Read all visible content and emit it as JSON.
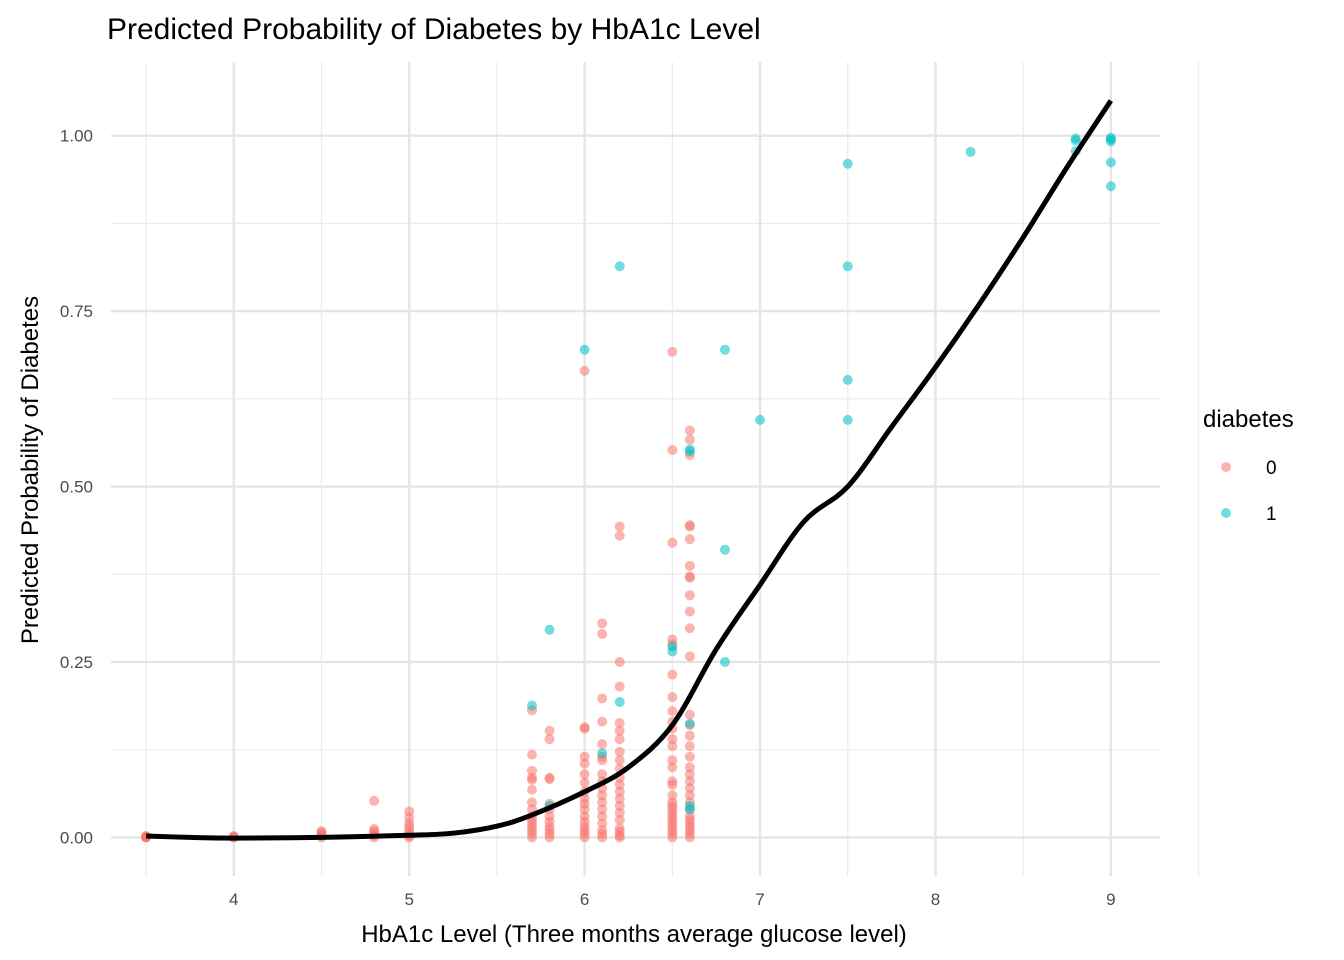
{
  "chart_data": {
    "type": "scatter",
    "title": "Predicted Probability of Diabetes by HbA1c Level",
    "xlabel": "HbA1c Level (Three months average glucose level)",
    "ylabel": "Predicted Probability of Diabetes",
    "xlim": [
      3.3,
      9.28
    ],
    "ylim": [
      -0.055,
      1.105
    ],
    "x_ticks": [
      4,
      5,
      6,
      7,
      8,
      9
    ],
    "x_tick_labels": [
      "4",
      "5",
      "6",
      "7",
      "8",
      "9"
    ],
    "y_ticks": [
      0,
      0.25,
      0.5,
      0.75,
      1
    ],
    "y_tick_labels": [
      "0.00",
      "0.25",
      "0.50",
      "0.75",
      "1.00"
    ],
    "grid": true,
    "legend": {
      "title": "diabetes",
      "placement": "right",
      "entries": [
        {
          "label": "0",
          "color": "#F8766D"
        },
        {
          "label": "1",
          "color": "#00BFC4"
        }
      ]
    },
    "series": [
      {
        "name": "0",
        "color": "#F8766D",
        "points": [
          [
            3.5,
            0.0
          ],
          [
            3.5,
            0.001
          ],
          [
            3.5,
            0.002
          ],
          [
            3.5,
            0.0
          ],
          [
            3.5,
            0.001
          ],
          [
            4.0,
            0.0
          ],
          [
            4.0,
            0.001
          ],
          [
            4.0,
            0.002
          ],
          [
            4.0,
            0.0
          ],
          [
            4.5,
            0.0
          ],
          [
            4.5,
            0.002
          ],
          [
            4.5,
            0.004
          ],
          [
            4.5,
            0.007
          ],
          [
            4.5,
            0.009
          ],
          [
            4.8,
            0.0
          ],
          [
            4.8,
            0.003
          ],
          [
            4.8,
            0.006
          ],
          [
            4.8,
            0.009
          ],
          [
            4.8,
            0.012
          ],
          [
            4.8,
            0.052
          ],
          [
            5.0,
            0.0
          ],
          [
            5.0,
            0.002
          ],
          [
            5.0,
            0.005
          ],
          [
            5.0,
            0.01
          ],
          [
            5.0,
            0.015
          ],
          [
            5.0,
            0.02
          ],
          [
            5.0,
            0.028
          ],
          [
            5.0,
            0.037
          ],
          [
            5.7,
            0.0
          ],
          [
            5.7,
            0.005
          ],
          [
            5.7,
            0.01
          ],
          [
            5.7,
            0.015
          ],
          [
            5.7,
            0.02
          ],
          [
            5.7,
            0.025
          ],
          [
            5.7,
            0.03
          ],
          [
            5.7,
            0.04
          ],
          [
            5.7,
            0.05
          ],
          [
            5.7,
            0.068
          ],
          [
            5.7,
            0.082
          ],
          [
            5.7,
            0.085
          ],
          [
            5.7,
            0.095
          ],
          [
            5.7,
            0.118
          ],
          [
            5.7,
            0.181
          ],
          [
            5.8,
            0.0
          ],
          [
            5.8,
            0.005
          ],
          [
            5.8,
            0.01
          ],
          [
            5.8,
            0.015
          ],
          [
            5.8,
            0.022
          ],
          [
            5.8,
            0.03
          ],
          [
            5.8,
            0.04
          ],
          [
            5.8,
            0.048
          ],
          [
            5.8,
            0.083
          ],
          [
            5.8,
            0.085
          ],
          [
            5.8,
            0.14
          ],
          [
            5.8,
            0.152
          ],
          [
            6.0,
            0.0
          ],
          [
            6.0,
            0.005
          ],
          [
            6.0,
            0.01
          ],
          [
            6.0,
            0.015
          ],
          [
            6.0,
            0.022
          ],
          [
            6.0,
            0.03
          ],
          [
            6.0,
            0.04
          ],
          [
            6.0,
            0.048
          ],
          [
            6.0,
            0.055
          ],
          [
            6.0,
            0.065
          ],
          [
            6.0,
            0.078
          ],
          [
            6.0,
            0.09
          ],
          [
            6.0,
            0.105
          ],
          [
            6.0,
            0.115
          ],
          [
            6.0,
            0.155
          ],
          [
            6.0,
            0.157
          ],
          [
            6.0,
            0.665
          ],
          [
            6.1,
            0.0
          ],
          [
            6.1,
            0.005
          ],
          [
            6.1,
            0.01
          ],
          [
            6.1,
            0.02
          ],
          [
            6.1,
            0.03
          ],
          [
            6.1,
            0.04
          ],
          [
            6.1,
            0.05
          ],
          [
            6.1,
            0.06
          ],
          [
            6.1,
            0.07
          ],
          [
            6.1,
            0.08
          ],
          [
            6.1,
            0.09
          ],
          [
            6.1,
            0.11
          ],
          [
            6.1,
            0.115
          ],
          [
            6.1,
            0.133
          ],
          [
            6.1,
            0.165
          ],
          [
            6.1,
            0.198
          ],
          [
            6.1,
            0.29
          ],
          [
            6.1,
            0.305
          ],
          [
            6.2,
            0.0
          ],
          [
            6.2,
            0.003
          ],
          [
            6.2,
            0.008
          ],
          [
            6.2,
            0.013
          ],
          [
            6.2,
            0.025
          ],
          [
            6.2,
            0.035
          ],
          [
            6.2,
            0.045
          ],
          [
            6.2,
            0.055
          ],
          [
            6.2,
            0.065
          ],
          [
            6.2,
            0.075
          ],
          [
            6.2,
            0.085
          ],
          [
            6.2,
            0.098
          ],
          [
            6.2,
            0.11
          ],
          [
            6.2,
            0.122
          ],
          [
            6.2,
            0.14
          ],
          [
            6.2,
            0.152
          ],
          [
            6.2,
            0.163
          ],
          [
            6.2,
            0.215
          ],
          [
            6.2,
            0.25
          ],
          [
            6.2,
            0.43
          ],
          [
            6.2,
            0.443
          ],
          [
            6.5,
            0.0
          ],
          [
            6.5,
            0.005
          ],
          [
            6.5,
            0.01
          ],
          [
            6.5,
            0.015
          ],
          [
            6.5,
            0.02
          ],
          [
            6.5,
            0.025
          ],
          [
            6.5,
            0.03
          ],
          [
            6.5,
            0.035
          ],
          [
            6.5,
            0.04
          ],
          [
            6.5,
            0.045
          ],
          [
            6.5,
            0.05
          ],
          [
            6.5,
            0.06
          ],
          [
            6.5,
            0.075
          ],
          [
            6.5,
            0.08
          ],
          [
            6.5,
            0.1
          ],
          [
            6.5,
            0.11
          ],
          [
            6.5,
            0.13
          ],
          [
            6.5,
            0.14
          ],
          [
            6.5,
            0.155
          ],
          [
            6.5,
            0.165
          ],
          [
            6.5,
            0.18
          ],
          [
            6.5,
            0.2
          ],
          [
            6.5,
            0.232
          ],
          [
            6.5,
            0.275
          ],
          [
            6.5,
            0.282
          ],
          [
            6.5,
            0.42
          ],
          [
            6.5,
            0.552
          ],
          [
            6.5,
            0.692
          ],
          [
            6.6,
            0.0
          ],
          [
            6.6,
            0.005
          ],
          [
            6.6,
            0.01
          ],
          [
            6.6,
            0.015
          ],
          [
            6.6,
            0.02
          ],
          [
            6.6,
            0.025
          ],
          [
            6.6,
            0.03
          ],
          [
            6.6,
            0.04
          ],
          [
            6.6,
            0.05
          ],
          [
            6.6,
            0.06
          ],
          [
            6.6,
            0.07
          ],
          [
            6.6,
            0.08
          ],
          [
            6.6,
            0.09
          ],
          [
            6.6,
            0.1
          ],
          [
            6.6,
            0.115
          ],
          [
            6.6,
            0.13
          ],
          [
            6.6,
            0.145
          ],
          [
            6.6,
            0.16
          ],
          [
            6.6,
            0.175
          ],
          [
            6.6,
            0.258
          ],
          [
            6.6,
            0.298
          ],
          [
            6.6,
            0.322
          ],
          [
            6.6,
            0.345
          ],
          [
            6.6,
            0.37
          ],
          [
            6.6,
            0.372
          ],
          [
            6.6,
            0.387
          ],
          [
            6.6,
            0.425
          ],
          [
            6.6,
            0.443
          ],
          [
            6.6,
            0.445
          ],
          [
            6.6,
            0.545
          ],
          [
            6.6,
            0.567
          ],
          [
            6.6,
            0.58
          ]
        ]
      },
      {
        "name": "1",
        "color": "#00BFC4",
        "points": [
          [
            5.7,
            0.188
          ],
          [
            5.8,
            0.045
          ],
          [
            5.8,
            0.296
          ],
          [
            6.0,
            0.695
          ],
          [
            6.1,
            0.12
          ],
          [
            6.2,
            0.193
          ],
          [
            6.2,
            0.814
          ],
          [
            6.5,
            0.265
          ],
          [
            6.5,
            0.272
          ],
          [
            6.6,
            0.04
          ],
          [
            6.6,
            0.045
          ],
          [
            6.6,
            0.162
          ],
          [
            6.6,
            0.55
          ],
          [
            6.6,
            0.553
          ],
          [
            6.8,
            0.25
          ],
          [
            6.8,
            0.41
          ],
          [
            6.8,
            0.695
          ],
          [
            7.0,
            0.595
          ],
          [
            7.5,
            0.595
          ],
          [
            7.5,
            0.652
          ],
          [
            7.5,
            0.814
          ],
          [
            7.5,
            0.96
          ],
          [
            8.2,
            0.977
          ],
          [
            8.8,
            0.978
          ],
          [
            8.8,
            0.993
          ],
          [
            8.8,
            0.996
          ],
          [
            9.0,
            0.928
          ],
          [
            9.0,
            0.962
          ],
          [
            9.0,
            0.992
          ],
          [
            9.0,
            0.995
          ],
          [
            9.0,
            0.997
          ]
        ]
      }
    ],
    "fit_line": {
      "color": "#000000",
      "points": [
        [
          3.5,
          0.002
        ],
        [
          3.75,
          0.0
        ],
        [
          4.0,
          -0.001
        ],
        [
          4.5,
          0.0
        ],
        [
          5.0,
          0.003
        ],
        [
          5.25,
          0.006
        ],
        [
          5.5,
          0.016
        ],
        [
          5.7,
          0.032
        ],
        [
          6.0,
          0.065
        ],
        [
          6.25,
          0.1
        ],
        [
          6.5,
          0.16
        ],
        [
          6.75,
          0.268
        ],
        [
          7.0,
          0.36
        ],
        [
          7.25,
          0.45
        ],
        [
          7.5,
          0.5
        ],
        [
          7.75,
          0.585
        ],
        [
          8.0,
          0.67
        ],
        [
          8.25,
          0.76
        ],
        [
          8.5,
          0.855
        ],
        [
          8.75,
          0.955
        ],
        [
          9.0,
          1.05
        ]
      ]
    }
  }
}
